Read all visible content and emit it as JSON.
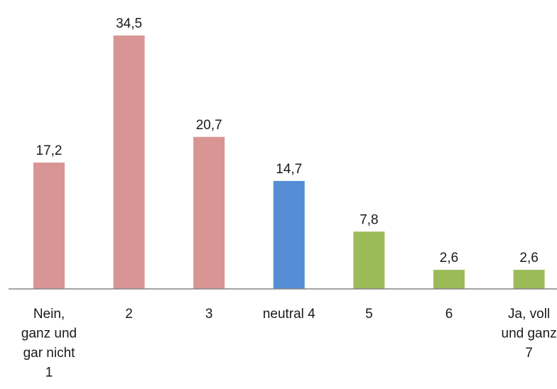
{
  "chart_data": {
    "type": "bar",
    "categories": [
      [
        "Nein,",
        "ganz und",
        "gar nicht",
        "1"
      ],
      [
        "2"
      ],
      [
        "3"
      ],
      [
        "neutral 4"
      ],
      [
        "5"
      ],
      [
        "6"
      ],
      [
        "Ja, voll",
        "und ganz",
        "7"
      ]
    ],
    "values": [
      17.2,
      34.5,
      20.7,
      14.7,
      7.8,
      2.6,
      2.6
    ],
    "value_labels": [
      "17,2",
      "34,5",
      "20,7",
      "14,7",
      "7,8",
      "2,6",
      "2,6"
    ],
    "bar_colors": [
      "#d99594",
      "#d99594",
      "#d99594",
      "#558ed5",
      "#9bbb59",
      "#9bbb59",
      "#9bbb59"
    ],
    "axis_color": "#868686",
    "ylim": [
      0,
      34.5
    ],
    "grid": false,
    "legend": "none",
    "title": "",
    "xlabel": "",
    "ylabel": ""
  }
}
